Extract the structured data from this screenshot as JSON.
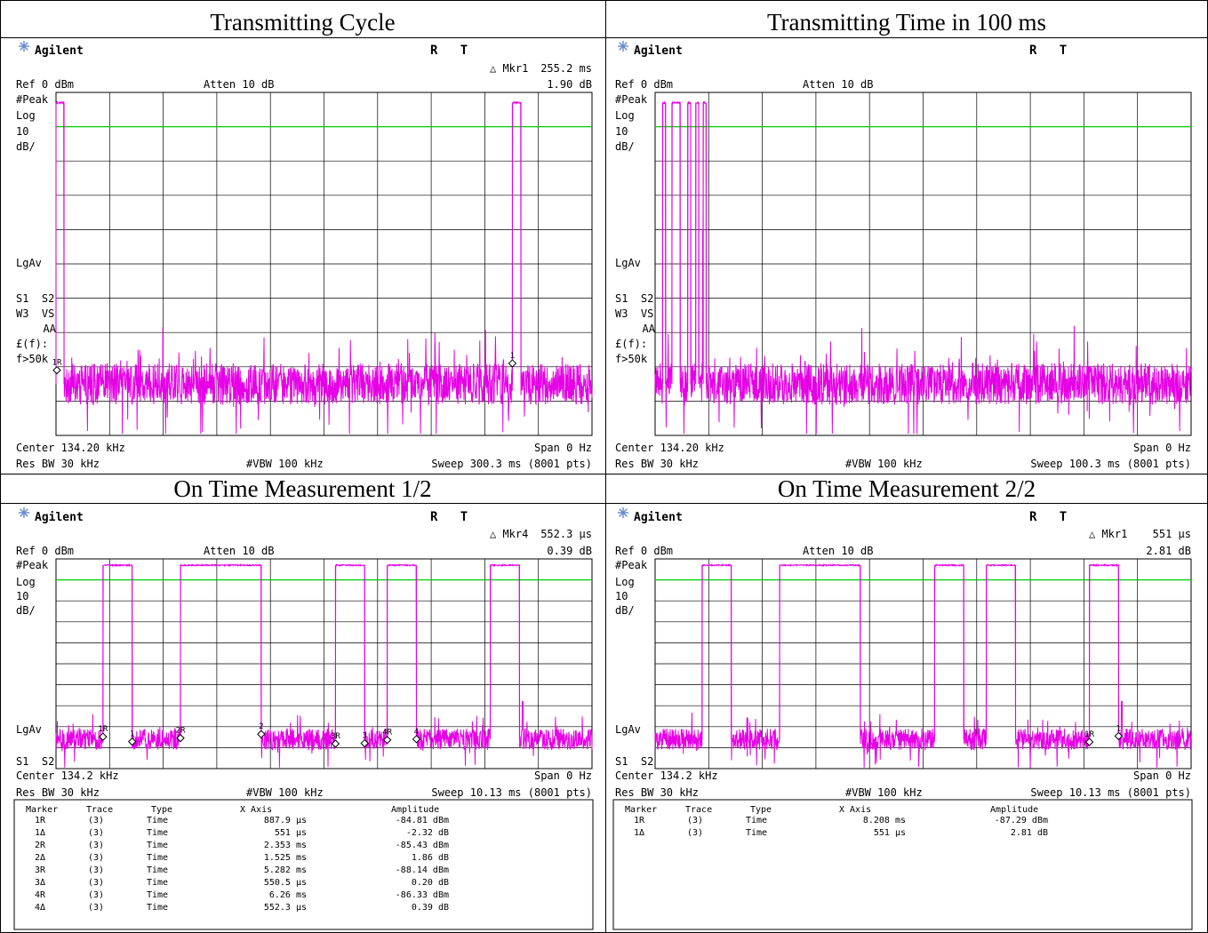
{
  "panels": [
    {
      "id": "tx-cycle",
      "header": "Transmitting Cycle",
      "brand": "Agilent",
      "status": "R   T",
      "marker_name": "△ Mkr1",
      "marker_x": "255.2 ms",
      "marker_y": "1.90 dB",
      "ref": "Ref 0 dBm",
      "atten": "Atten 10 dB",
      "side_labels": [
        "#Peak",
        "Log",
        "10",
        "dB/",
        "LgAv",
        "S1  S2",
        "W3  VS",
        "AA",
        "£(f):",
        "f>50k"
      ],
      "center": "Center 134.20 kHz",
      "span": "Span 0 Hz",
      "resbw": "Res BW 30 kHz",
      "vbw": "#VBW 100 kHz",
      "sweep": "Sweep 300.3 ms (8001 pts)",
      "table": null
    },
    {
      "id": "tx-time",
      "header": "Transmitting Time in 100 ms",
      "brand": "Agilent",
      "status": "R   T",
      "marker_name": "",
      "marker_x": "",
      "marker_y": "",
      "ref": "Ref 0 dBm",
      "atten": "Atten 10 dB",
      "side_labels": [
        "#Peak",
        "Log",
        "10",
        "dB/",
        "LgAv",
        "S1  S2",
        "W3  VS",
        "AA",
        "£(f):",
        "f>50k"
      ],
      "center": "Center 134.20 kHz",
      "span": "Span 0 Hz",
      "resbw": "Res BW 30 kHz",
      "vbw": "#VBW 100 kHz",
      "sweep": "Sweep 100.3 ms (8001 pts)",
      "table": null
    },
    {
      "id": "on-time-1",
      "header": "On Time Measurement 1/2",
      "brand": "Agilent",
      "status": "R   T",
      "marker_name": "△ Mkr4",
      "marker_x": "552.3 μs",
      "marker_y": "0.39 dB",
      "ref": "Ref 0 dBm",
      "atten": "Atten 10 dB",
      "side_labels": [
        "#Peak",
        "Log",
        "10",
        "dB/",
        "LgAv",
        "S1  S2"
      ],
      "center": "Center 134.2 kHz",
      "span": "Span 0 Hz",
      "resbw": "Res BW 30 kHz",
      "vbw": "#VBW 100 kHz",
      "sweep": "Sweep 10.13 ms (8001 pts)",
      "table": {
        "headers": [
          "Marker",
          "Trace",
          "Type",
          "X Axis",
          "Amplitude"
        ],
        "rows": [
          [
            "1R",
            "(3)",
            "Time",
            "887.9 μs",
            "-84.81 dBm"
          ],
          [
            "1Δ",
            "(3)",
            "Time",
            "551 μs",
            "-2.32 dB"
          ],
          [
            "2R",
            "(3)",
            "Time",
            "2.353 ms",
            "-85.43 dBm"
          ],
          [
            "2Δ",
            "(3)",
            "Time",
            "1.525 ms",
            "1.86 dB"
          ],
          [
            "3R",
            "(3)",
            "Time",
            "5.282 ms",
            "-88.14 dBm"
          ],
          [
            "3Δ",
            "(3)",
            "Time",
            "550.5 μs",
            "0.20 dB"
          ],
          [
            "4R",
            "(3)",
            "Time",
            "6.26 ms",
            "-86.33 dBm"
          ],
          [
            "4Δ",
            "(3)",
            "Time",
            "552.3 μs",
            "0.39 dB"
          ]
        ]
      }
    },
    {
      "id": "on-time-2",
      "header": "On Time Measurement 2/2",
      "brand": "Agilent",
      "status": "R   T",
      "marker_name": "△ Mkr1",
      "marker_x": "551 μs",
      "marker_y": "2.81 dB",
      "ref": "Ref 0 dBm",
      "atten": "Atten 10 dB",
      "side_labels": [
        "#Peak",
        "Log",
        "10",
        "dB/",
        "LgAv",
        "S1  S2"
      ],
      "center": "Center 134.2 kHz",
      "span": "Span 0 Hz",
      "resbw": "Res BW 30 kHz",
      "vbw": "#VBW 100 kHz",
      "sweep": "Sweep 10.13 ms (8001 pts)",
      "table": {
        "headers": [
          "Marker",
          "Trace",
          "Type",
          "X Axis",
          "Amplitude"
        ],
        "rows": [
          [
            "1R",
            "(3)",
            "Time",
            "8.208 ms",
            "-87.29 dBm"
          ],
          [
            "1Δ",
            "(3)",
            "Time",
            "551 μs",
            "2.81 dB"
          ]
        ]
      }
    }
  ],
  "chart_data": [
    {
      "type": "line",
      "title": "Transmitting Cycle",
      "x_unit": "ms",
      "xlim": [
        0,
        300.3
      ],
      "y_unit": "dBm",
      "ylim": [
        -100,
        0
      ],
      "ref_level": 0,
      "scale_db_per_div": 10,
      "display_line": -10,
      "grid": true,
      "series": [
        {
          "bursts_ms": [
            [
              0,
              4.5
            ],
            [
              255.7,
              260.5
            ]
          ],
          "burst_level": -3,
          "noise_floor": -85,
          "noise_spread": 6
        }
      ],
      "markers": [
        {
          "label": "1R",
          "x": 0.5,
          "y": -81
        },
        {
          "label": "1",
          "x": 255.7,
          "y": -79
        }
      ]
    },
    {
      "type": "line",
      "title": "Transmitting Time in 100 ms",
      "x_unit": "ms",
      "xlim": [
        0,
        100.3
      ],
      "y_unit": "dBm",
      "ylim": [
        -100,
        0
      ],
      "ref_level": 0,
      "scale_db_per_div": 10,
      "display_line": -10,
      "grid": true,
      "series": [
        {
          "bursts_ms": [
            [
              1.4,
              1.95
            ],
            [
              3.15,
              4.7
            ],
            [
              6.1,
              6.66
            ],
            [
              7.6,
              8.16
            ],
            [
              9.0,
              9.55
            ]
          ],
          "burst_level": -3,
          "noise_floor": -85,
          "noise_spread": 6
        }
      ],
      "spikes": [
        {
          "x": 8.95,
          "y": -40
        }
      ],
      "markers": []
    },
    {
      "type": "line",
      "title": "On Time Measurement 1/2",
      "x_unit": "ms",
      "xlim": [
        0,
        10.13
      ],
      "y_unit": "dBm",
      "ylim": [
        -100,
        0
      ],
      "ref_level": 0,
      "scale_db_per_div": 10,
      "display_line": -10,
      "grid": true,
      "series": [
        {
          "bursts_ms": [
            [
              0.8879,
              1.4389
            ],
            [
              2.353,
              3.878
            ],
            [
              5.282,
              5.8325
            ],
            [
              6.26,
              6.8123
            ],
            [
              8.208,
              8.759
            ]
          ],
          "burst_level": -3,
          "noise_floor": -86,
          "noise_spread": 5
        }
      ],
      "spikes": [
        {
          "x": 8.82,
          "y": -68
        }
      ],
      "markers": [
        {
          "label": "1R",
          "x": 0.8879,
          "y": -84.81
        },
        {
          "label": "1",
          "x": 1.4389,
          "y": -87.13
        },
        {
          "label": "2R",
          "x": 2.353,
          "y": -85.43
        },
        {
          "label": "2",
          "x": 3.878,
          "y": -83.57
        },
        {
          "label": "3R",
          "x": 5.282,
          "y": -88.14
        },
        {
          "label": "3",
          "x": 5.8325,
          "y": -87.94
        },
        {
          "label": "4R",
          "x": 6.26,
          "y": -86.33
        },
        {
          "label": "4",
          "x": 6.8123,
          "y": -85.94
        }
      ]
    },
    {
      "type": "line",
      "title": "On Time Measurement 2/2",
      "x_unit": "ms",
      "xlim": [
        0,
        10.13
      ],
      "y_unit": "dBm",
      "ylim": [
        -100,
        0
      ],
      "ref_level": 0,
      "scale_db_per_div": 10,
      "display_line": -10,
      "grid": true,
      "series": [
        {
          "bursts_ms": [
            [
              0.8879,
              1.4389
            ],
            [
              2.353,
              3.878
            ],
            [
              5.282,
              5.8325
            ],
            [
              6.26,
              6.8123
            ],
            [
              8.208,
              8.759
            ]
          ],
          "burst_level": -3,
          "noise_floor": -86,
          "noise_spread": 5
        }
      ],
      "spikes": [
        {
          "x": 8.82,
          "y": -68
        }
      ],
      "markers": [
        {
          "label": "1R",
          "x": 8.208,
          "y": -87.29
        },
        {
          "label": "1",
          "x": 8.759,
          "y": -84.48
        }
      ]
    }
  ],
  "colors": {
    "trace": "#e600e6",
    "display_line": "#00cc00",
    "grid": "#000000",
    "brand_star": "#3366cc"
  }
}
